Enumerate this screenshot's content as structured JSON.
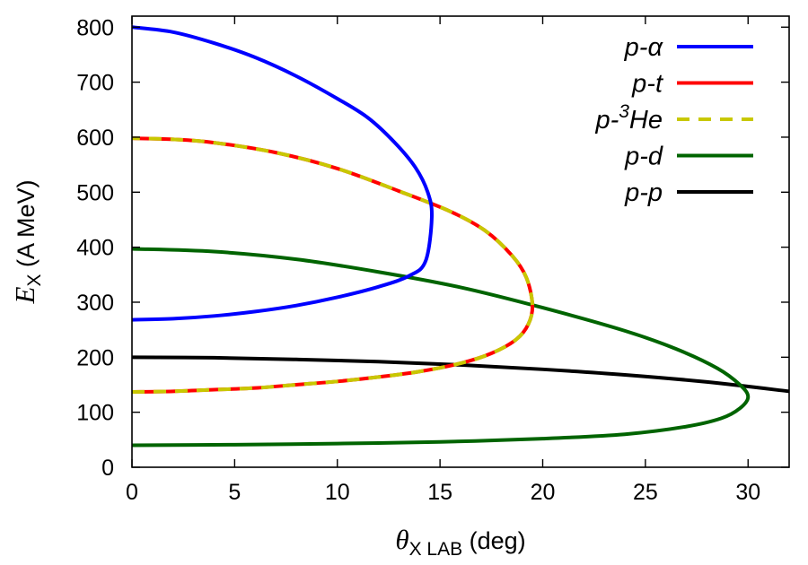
{
  "chart_data": {
    "type": "line",
    "xlabel": {
      "symbol": "θ",
      "subscript": "X LAB",
      "rest": " (deg)"
    },
    "ylabel": {
      "symbol": "E",
      "subscript": "X",
      "rest": " (A MeV)"
    },
    "xlim": [
      0,
      32
    ],
    "ylim": [
      0,
      820
    ],
    "xticks": [
      0,
      5,
      10,
      15,
      20,
      25,
      30
    ],
    "yticks": [
      0,
      100,
      200,
      300,
      400,
      500,
      600,
      700,
      800
    ],
    "grid": false,
    "legend_position": "top-right",
    "series": [
      {
        "name": "p-α",
        "legend": {
          "main": "p-α"
        },
        "color": "#0000ff",
        "dashed": false,
        "x": [
          0,
          2,
          4,
          6,
          8,
          10,
          12,
          13.5,
          14.3,
          14.6,
          14.4,
          13.8,
          12.8,
          11.5,
          10,
          8,
          6,
          4,
          2,
          0
        ],
        "y": [
          268,
          270,
          275,
          283,
          294,
          309,
          328,
          348,
          375,
          455,
          500,
          545,
          590,
          635,
          670,
          711,
          745,
          771,
          791,
          800
        ]
      },
      {
        "name": "p-t",
        "legend": {
          "main": "p-t"
        },
        "color": "#ff0000",
        "dashed": false,
        "x": [
          0,
          2,
          4,
          6,
          8,
          10,
          12,
          14,
          16,
          17.5,
          18.7,
          19.3,
          19.5,
          19.2,
          18.5,
          17.2,
          15.5,
          13,
          10,
          7,
          4,
          2,
          0
        ],
        "y": [
          137,
          138,
          141,
          144,
          150,
          156,
          164,
          174,
          189,
          207,
          232,
          260,
          295,
          345,
          385,
          430,
          465,
          502,
          543,
          572,
          590,
          596,
          598
        ]
      },
      {
        "name": "p-3He",
        "legend": {
          "pre": "p-",
          "sup": "3",
          "post": "He"
        },
        "color": "#c8c800",
        "dashed": true,
        "x": [
          0,
          2,
          4,
          6,
          8,
          10,
          12,
          14,
          16,
          17.5,
          18.7,
          19.3,
          19.5,
          19.2,
          18.5,
          17.2,
          15.5,
          13,
          10,
          7,
          4,
          2,
          0
        ],
        "y": [
          137,
          138,
          141,
          144,
          150,
          156,
          164,
          174,
          189,
          207,
          232,
          260,
          295,
          345,
          385,
          430,
          465,
          502,
          543,
          572,
          590,
          596,
          598
        ]
      },
      {
        "name": "p-d",
        "legend": {
          "main": "p-d"
        },
        "color": "#006400",
        "dashed": false,
        "x": [
          0,
          5,
          10,
          15,
          20,
          24,
          27,
          28.7,
          29.6,
          30,
          29.6,
          28.5,
          26.5,
          24,
          20,
          16,
          12,
          8,
          4,
          0
        ],
        "y": [
          40,
          41,
          43,
          46,
          52,
          60,
          74,
          89,
          107,
          128,
          150,
          180,
          215,
          248,
          290,
          327,
          355,
          378,
          392,
          397
        ]
      },
      {
        "name": "p-p",
        "legend": {
          "main": "p-p"
        },
        "color": "#000000",
        "dashed": false,
        "x": [
          0,
          4,
          8,
          12,
          16,
          20,
          24,
          28,
          32
        ],
        "y": [
          200,
          199,
          196,
          192,
          186,
          178,
          168,
          155,
          138
        ]
      }
    ]
  }
}
